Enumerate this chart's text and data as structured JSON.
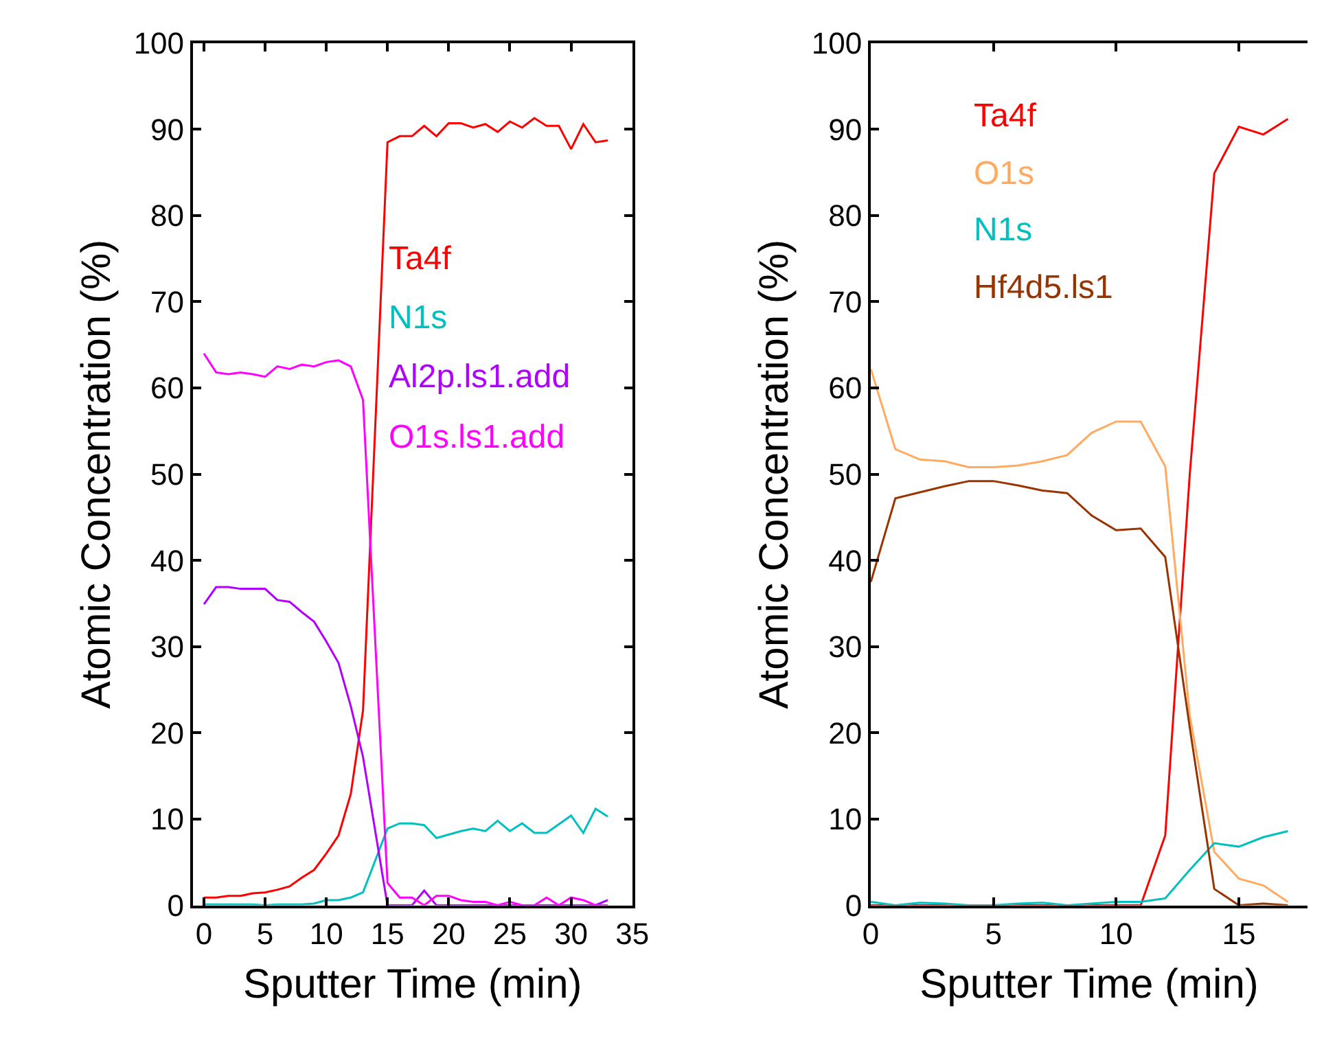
{
  "chart_data": [
    {
      "type": "line",
      "xlabel": "Sputter Time (min)",
      "ylabel": "Atomic Concentration (%)",
      "xlim": [
        -0.9,
        35
      ],
      "xticks": [
        0,
        5,
        10,
        15,
        20,
        25,
        30,
        35
      ],
      "ylim": [
        0,
        100
      ],
      "yticks": [
        0,
        10,
        20,
        30,
        40,
        50,
        60,
        70,
        80,
        90,
        100
      ],
      "legend": "right",
      "marker": "none",
      "line_style": "solid",
      "x": [
        0,
        1,
        2,
        3,
        4,
        5,
        6,
        7,
        8,
        9,
        10,
        11,
        12,
        13,
        15,
        16,
        17,
        18,
        19,
        20,
        21,
        22,
        23,
        24,
        25,
        26,
        27,
        28,
        29,
        30,
        31,
        32,
        33
      ],
      "series": [
        {
          "name": "Ta4f",
          "color": "#ff0000",
          "values": [
            0.9,
            0.9,
            1.1,
            1.1,
            1.4,
            1.5,
            1.8,
            2.2,
            3.2,
            4.1,
            6.0,
            8.1,
            12.9,
            22.6,
            88.5,
            89.2,
            89.2,
            90.4,
            89.2,
            90.7,
            90.7,
            90.2,
            90.6,
            89.7,
            90.9,
            90.2,
            91.3,
            90.4,
            90.4,
            87.7,
            90.6,
            88.5,
            88.7
          ]
        },
        {
          "name": "N1s",
          "color": "#00c0c0",
          "values": [
            0.1,
            0.1,
            0.1,
            0.1,
            0.1,
            0,
            0.1,
            0.1,
            0.1,
            0.2,
            0.6,
            0.6,
            0.9,
            1.5,
            8.9,
            9.5,
            9.5,
            9.3,
            7.8,
            8.2,
            8.6,
            8.9,
            8.6,
            9.8,
            8.6,
            9.5,
            8.4,
            8.4,
            9.4,
            10.4,
            8.4,
            11.2,
            10.3
          ]
        },
        {
          "name": "Al2p.ls1.add",
          "color": "#b000ff",
          "values": [
            34.9,
            36.9,
            36.9,
            36.7,
            36.7,
            36.7,
            35.4,
            35.2,
            34.0,
            32.9,
            30.6,
            28.1,
            23.1,
            17.2,
            0,
            0,
            0,
            1.7,
            0,
            0,
            0,
            0,
            0,
            0,
            0,
            0,
            0,
            0,
            0,
            0,
            0,
            0,
            0.6
          ]
        },
        {
          "name": "O1s.ls1.add",
          "color": "#ff00ff",
          "values": [
            64.0,
            61.8,
            61.6,
            61.8,
            61.6,
            61.3,
            62.5,
            62.2,
            62.7,
            62.5,
            63.0,
            63.2,
            62.5,
            58.6,
            2.6,
            0.9,
            0.9,
            0,
            1.1,
            1.1,
            0.6,
            0.4,
            0.4,
            0,
            0.4,
            0,
            0,
            0.9,
            0,
            0.9,
            0.6,
            0,
            0
          ]
        }
      ]
    },
    {
      "type": "line",
      "xlabel": "Sputter Time (min)",
      "ylabel": "Atomic Concentration (%)",
      "xlim": [
        0,
        17.8
      ],
      "xticks": [
        0,
        5,
        10,
        15
      ],
      "ylim": [
        0,
        100
      ],
      "yticks": [
        0,
        10,
        20,
        30,
        40,
        50,
        60,
        70,
        80,
        90,
        100
      ],
      "legend": "top left",
      "marker": "none",
      "line_style": "solid",
      "x": [
        0,
        1,
        2,
        3,
        4,
        5,
        6,
        7,
        8,
        9,
        10,
        11,
        12,
        13,
        14,
        15,
        16,
        17
      ],
      "series": [
        {
          "name": "Ta4f",
          "color": "#ff0000",
          "values": [
            0,
            0,
            0,
            0,
            0,
            0,
            0,
            0,
            0,
            0,
            0,
            0,
            8.1,
            50,
            84.9,
            90.3,
            89.4,
            91.2
          ]
        },
        {
          "name": "O1s",
          "color": "#ffaa60",
          "values": [
            62.2,
            52.9,
            51.7,
            51.5,
            50.8,
            50.8,
            51.0,
            51.5,
            52.2,
            54.8,
            56.1,
            56.1,
            50.9,
            22,
            6.2,
            3.1,
            2.3,
            0.4
          ]
        },
        {
          "name": "N1s",
          "color": "#00c0c0",
          "values": [
            0.4,
            0,
            0.3,
            0.2,
            0,
            0,
            0.2,
            0.3,
            0,
            0.2,
            0.4,
            0.4,
            0.8,
            4.1,
            7.2,
            6.8,
            7.9,
            8.6
          ]
        },
        {
          "name": "Hf4d5.ls1",
          "color": "#993300",
          "values": [
            37.5,
            47.2,
            47.9,
            48.6,
            49.2,
            49.2,
            48.7,
            48.1,
            47.8,
            45.2,
            43.5,
            43.7,
            40.4,
            20.6,
            1.9,
            0,
            0.2,
            0
          ]
        }
      ]
    }
  ]
}
